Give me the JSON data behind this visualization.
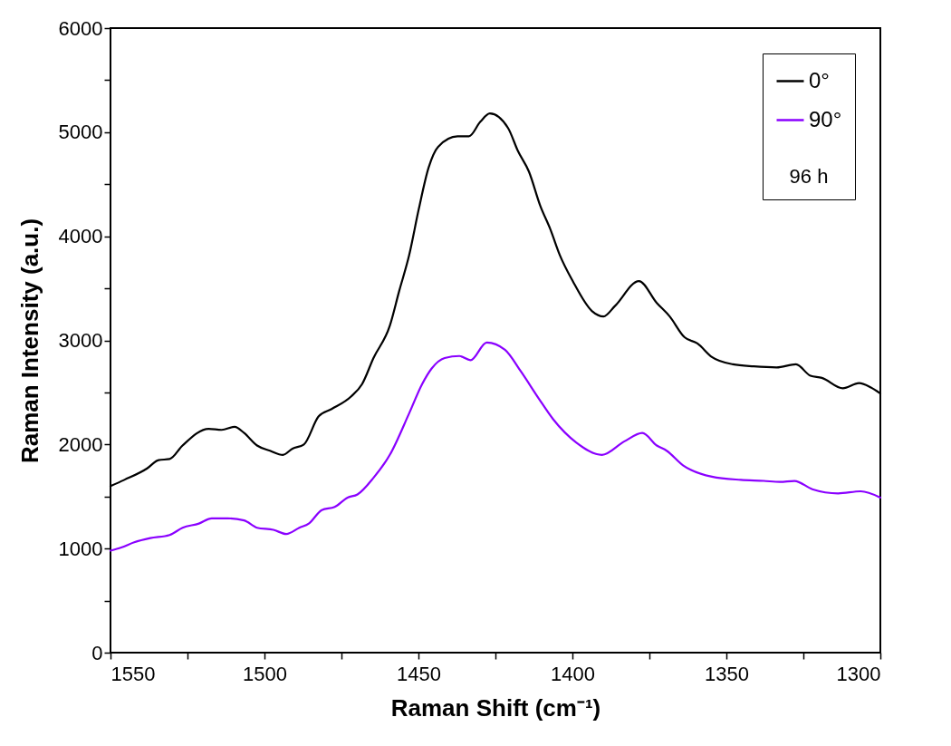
{
  "chart_data": {
    "type": "line",
    "xlabel": "Raman Shift (cm⁻¹)",
    "ylabel": "Raman Intensity (a.u.)",
    "legend_title": "96 h",
    "legend": "top right",
    "grid": false,
    "line_style": "solid",
    "xlim": [
      1550,
      1300
    ],
    "ylim": [
      0,
      6000
    ],
    "xticks": [
      1550,
      {
        "value": 1525,
        "label": null
      },
      1500,
      {
        "value": 1475,
        "label": null
      },
      1450,
      {
        "value": 1425,
        "label": null
      },
      1400,
      {
        "value": 1375,
        "label": null
      },
      1350,
      {
        "value": 1325,
        "label": null
      },
      1300
    ],
    "yticks": [
      0,
      {
        "value": 500,
        "label": null
      },
      1000,
      {
        "value": 1500,
        "label": null
      },
      2000,
      {
        "value": 2500,
        "label": null
      },
      3000,
      {
        "value": 3500,
        "label": null
      },
      4000,
      {
        "value": 4500,
        "label": null
      },
      5000,
      {
        "value": 5500,
        "label": null
      },
      6000
    ],
    "series": [
      {
        "name": "0°",
        "color": "#000000",
        "x": [
          1550,
          1545.5,
          1538.1,
          1534.4,
          1530.8,
          1526.6,
          1518.1,
          1513.9,
          1509.7,
          1506.6,
          1502.4,
          1498.2,
          1494,
          1490.9,
          1487.2,
          1482.4,
          1478.2,
          1471.9,
          1468.3,
          1464.6,
          1459.3,
          1456.2,
          1453,
          1449.9,
          1446.7,
          1443.6,
          1437.3,
          1433.6,
          1429.9,
          1426.8,
          1420.9,
          1417.7,
          1414.1,
          1410.4,
          1407.2,
          1404.1,
          1399.9,
          1393.6,
          1389.9,
          1386.2,
          1378.4,
          1372.6,
          1368.4,
          1363.6,
          1359.4,
          1354.7,
          1347.9,
          1341.1,
          1333.7,
          1327.4,
          1322.7,
          1319,
          1312.2,
          1306.9,
          1303.2,
          1300
        ],
        "values": [
          1600,
          1660,
          1770,
          1850,
          1860,
          1990,
          2150,
          2140,
          2170,
          2110,
          1990,
          1940,
          1900,
          1960,
          2000,
          2270,
          2340,
          2460,
          2580,
          2830,
          3140,
          3480,
          3820,
          4260,
          4660,
          4860,
          4960,
          4960,
          5100,
          5180,
          5040,
          4820,
          4620,
          4290,
          4070,
          3820,
          3570,
          3280,
          3230,
          3330,
          3570,
          3360,
          3230,
          3030,
          2970,
          2840,
          2770,
          2750,
          2740,
          2770,
          2660,
          2640,
          2540,
          2590,
          2550,
          2490
        ]
      },
      {
        "name": "90°",
        "color": "#8a00ff",
        "x": [
          1550,
          1546.5,
          1542.3,
          1537.1,
          1530.8,
          1526.6,
          1521.3,
          1517.1,
          1511.9,
          1506.6,
          1502.4,
          1497.1,
          1492.9,
          1488.7,
          1485.6,
          1481.4,
          1477.2,
          1473,
          1469.8,
          1464.6,
          1459.3,
          1453,
          1448.8,
          1445.7,
          1441.5,
          1436.7,
          1433.1,
          1427.8,
          1421.9,
          1416.7,
          1410.9,
          1406.2,
          1398.8,
          1390.4,
          1383.1,
          1377.3,
          1372.6,
          1369.4,
          1364.1,
          1354.7,
          1345.3,
          1337.9,
          1332.6,
          1327.9,
          1322.1,
          1313.7,
          1306.4,
          1300
        ],
        "values": [
          980,
          1010,
          1060,
          1100,
          1130,
          1200,
          1240,
          1290,
          1290,
          1270,
          1200,
          1180,
          1140,
          1200,
          1240,
          1370,
          1400,
          1490,
          1520,
          1680,
          1900,
          2300,
          2580,
          2730,
          2830,
          2850,
          2810,
          2980,
          2910,
          2700,
          2440,
          2240,
          2020,
          1900,
          2030,
          2110,
          1990,
          1940,
          1800,
          1690,
          1660,
          1650,
          1640,
          1650,
          1570,
          1530,
          1550,
          1490
        ]
      }
    ]
  }
}
